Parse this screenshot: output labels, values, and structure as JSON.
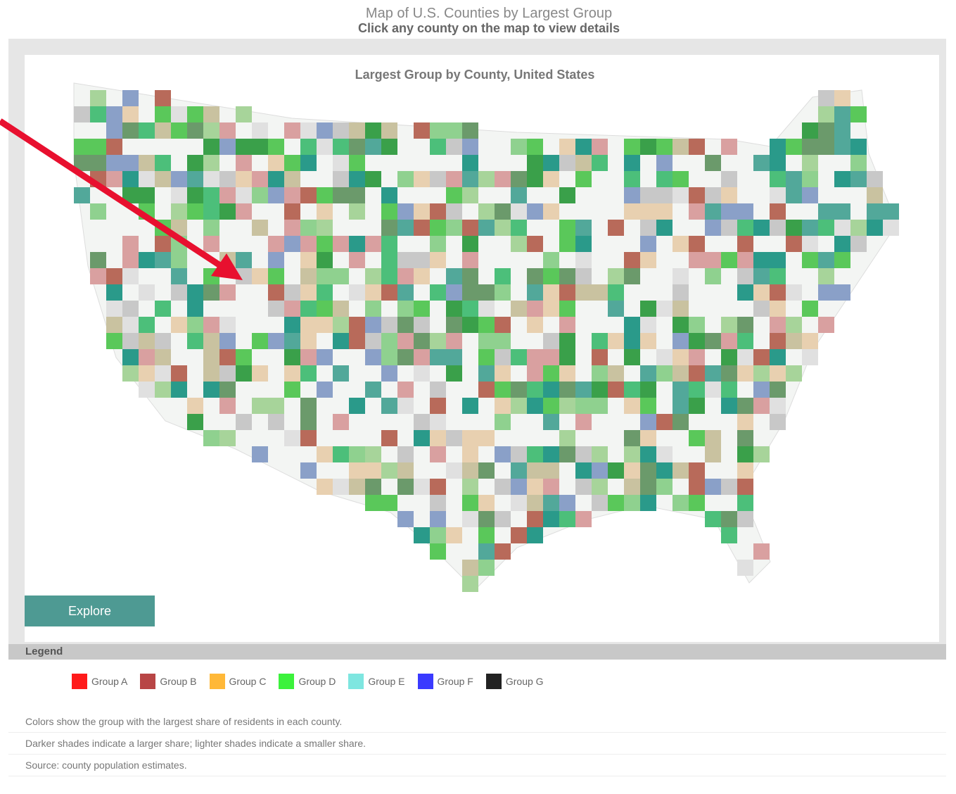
{
  "header": {
    "title": "Map of U.S. Counties by Largest Group",
    "subtitle": "Click any county on the map to view details"
  },
  "map": {
    "title": "Largest Group by County, United States",
    "badge": "Explore"
  },
  "legend": {
    "heading": "Legend",
    "items": [
      {
        "label": "Group A",
        "color": "#ff1a1a"
      },
      {
        "label": "Group B",
        "color": "#b84545"
      },
      {
        "label": "Group C",
        "color": "#ffb838"
      },
      {
        "label": "Group D",
        "color": "#3cf23c"
      },
      {
        "label": "Group E",
        "color": "#7ee6e0"
      },
      {
        "label": "Group F",
        "color": "#3a3aff"
      },
      {
        "label": "Group G",
        "color": "#222222"
      }
    ]
  },
  "notes": [
    "Colors show the group with the largest share of residents in each county.",
    "Darker shades indicate a larger share; lighter shades indicate a smaller share.",
    "Source: county population estimates."
  ]
}
